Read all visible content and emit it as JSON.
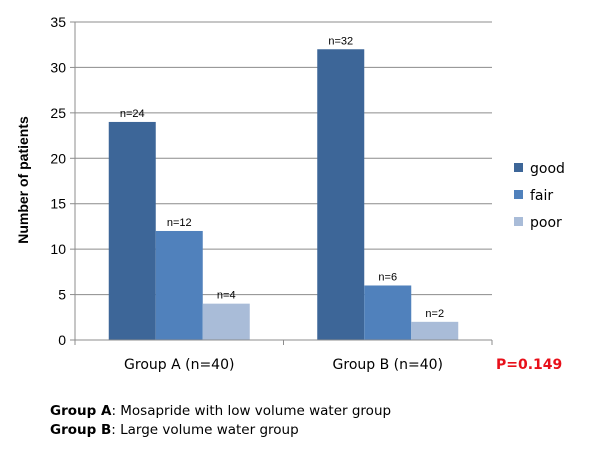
{
  "chart_data": {
    "type": "bar",
    "title": "",
    "xlabel": "",
    "ylabel": "Number of patients",
    "ylim": [
      0,
      35
    ],
    "yticks": [
      0,
      5,
      10,
      15,
      20,
      25,
      30,
      35
    ],
    "grid": true,
    "legend_position": "right",
    "categories": [
      "Group A (n=40)",
      "Group B (n=40)"
    ],
    "series": [
      {
        "name": "good",
        "color": "#3d6698",
        "values": [
          24,
          32
        ],
        "labels": [
          "n=24",
          "n=32"
        ]
      },
      {
        "name": "fair",
        "color": "#5081bc",
        "values": [
          12,
          6
        ],
        "labels": [
          "n=12",
          "n=6"
        ]
      },
      {
        "name": "poor",
        "color": "#a9bcd8",
        "values": [
          4,
          2
        ],
        "labels": [
          "n=4",
          "n=2"
        ]
      }
    ],
    "annotation": "P=0.149"
  },
  "notes": [
    {
      "key": "Group A",
      "text": ": Mosapride with low volume water group"
    },
    {
      "key": "Group B",
      "text": ": Large volume water group"
    }
  ]
}
